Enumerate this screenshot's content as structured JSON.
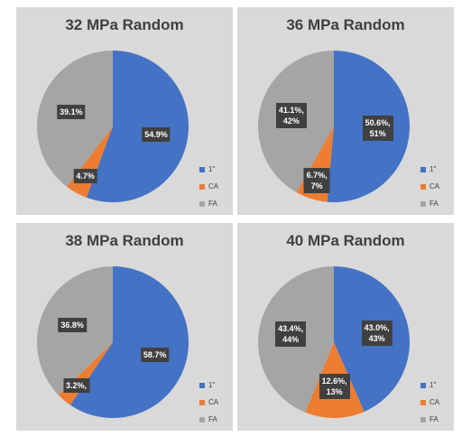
{
  "chart_data": [
    {
      "type": "pie",
      "title": "32 MPa Random",
      "categories": [
        "1\"",
        "CA",
        "FA"
      ],
      "values": [
        54.9,
        4.7,
        39.1
      ],
      "value_labels": [
        "54.9%",
        "4.7%",
        "39.1%"
      ],
      "colors": [
        "#4472c4",
        "#ed7d31",
        "#a5a5a5"
      ]
    },
    {
      "type": "pie",
      "title": "36 MPa Random",
      "categories": [
        "1\"",
        "CA",
        "FA"
      ],
      "values": [
        50.6,
        6.7,
        41.1
      ],
      "value_labels": [
        "50.6%,\n51%",
        "6.7%,\n7%",
        "41.1%,\n42%"
      ],
      "colors": [
        "#4472c4",
        "#ed7d31",
        "#a5a5a5"
      ]
    },
    {
      "type": "pie",
      "title": "38 MPa Random",
      "categories": [
        "1\"",
        "CA",
        "FA"
      ],
      "values": [
        58.7,
        3.2,
        36.8
      ],
      "value_labels": [
        "58.7%",
        "3.2%,",
        "36.8%"
      ],
      "colors": [
        "#4472c4",
        "#ed7d31",
        "#a5a5a5"
      ]
    },
    {
      "type": "pie",
      "title": "40 MPa Random",
      "categories": [
        "1\"",
        "CA",
        "FA"
      ],
      "values": [
        43.0,
        12.6,
        43.4
      ],
      "value_labels": [
        "43.0%,\n43%",
        "12.6%,\n13%",
        "43.4%,\n44%"
      ],
      "colors": [
        "#4472c4",
        "#ed7d31",
        "#a5a5a5"
      ]
    }
  ]
}
